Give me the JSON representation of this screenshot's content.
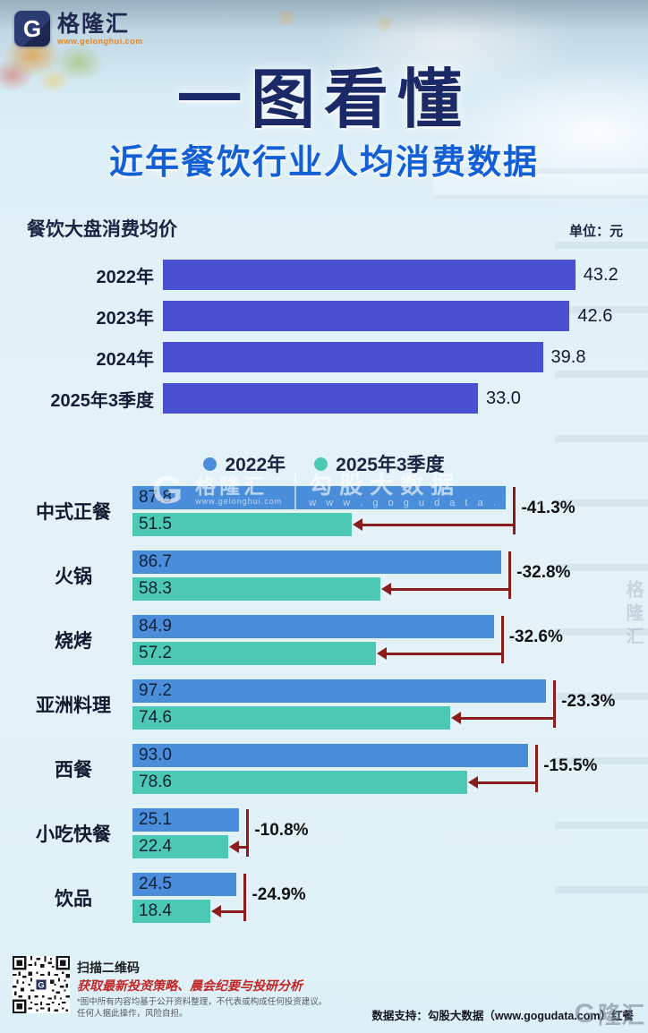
{
  "brand": {
    "logo_letter": "G",
    "name": "格隆汇",
    "url": "www.gelonghui.com"
  },
  "titles": {
    "main": "一图看懂",
    "subtitle": "近年餐饮行业人均消费数据"
  },
  "chart_data": [
    {
      "type": "bar",
      "orientation": "horizontal",
      "title": "餐饮大盘消费均价",
      "unit_label": "单位：元",
      "categories": [
        "2022年",
        "2023年",
        "2024年",
        "2025年3季度"
      ],
      "values": [
        43.2,
        42.6,
        39.8,
        33.0
      ],
      "xlim": [
        0,
        45
      ],
      "grid": false,
      "bar_color": "#4a51d0",
      "value_label_position": "outside-right"
    },
    {
      "type": "bar",
      "orientation": "horizontal",
      "categories": [
        "中式正餐",
        "火锅",
        "烧烤",
        "亚洲料理",
        "西餐",
        "小吃快餐",
        "饮品"
      ],
      "series": [
        {
          "name": "2022年",
          "color": "#4a8edb",
          "values": [
            87.8,
            86.7,
            84.9,
            97.2,
            93.0,
            25.1,
            24.5
          ]
        },
        {
          "name": "2025年3季度",
          "color": "#4dc8b2",
          "values": [
            51.5,
            58.3,
            57.2,
            74.6,
            78.6,
            22.4,
            18.4
          ]
        }
      ],
      "change_annotations": [
        "-41.3%",
        "-32.8%",
        "-32.6%",
        "-23.3%",
        "-15.5%",
        "-10.8%",
        "-24.9%"
      ],
      "annotation_arrow_color": "#8b1d1d",
      "legend_position": "top",
      "xlim": [
        0,
        102
      ],
      "grid": false,
      "value_label_position": "inside-left",
      "watermark": {
        "brand": "格隆汇",
        "brand_url": "www.gelonghui.com",
        "partner": "勾股大数据",
        "partner_url": "w w w . g o g u d a t a . c o m"
      }
    }
  ],
  "footer": {
    "qr_caption": "扫描二维码",
    "qr_promo": "获取最新投资策略、晨会纪要与投研分析",
    "disclaimer_line1": "*图中所有内容均基于公开资料整理，不代表或构成任何投资建议。",
    "disclaimer_line2": "任何人据此操作，风险自担。",
    "data_support": "数据支持：勾股大数据（www.gogudata.com）红餐",
    "corner_watermark": "隆汇"
  },
  "side_watermark": "格隆汇"
}
